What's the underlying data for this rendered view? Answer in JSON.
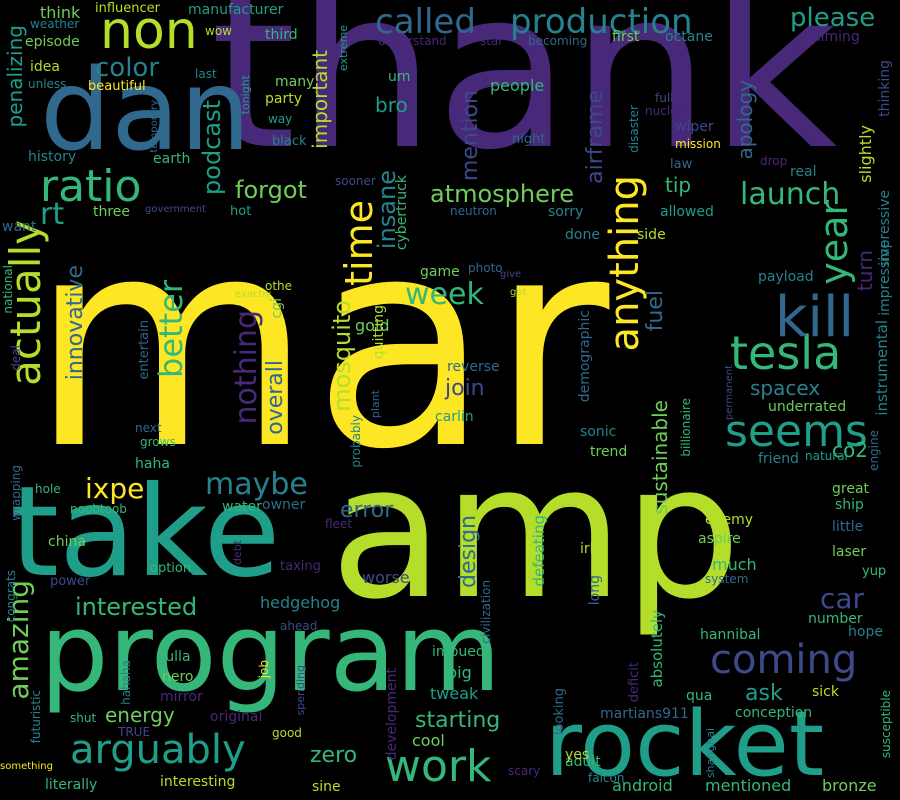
{
  "background": "#000000",
  "palette": [
    "#440154",
    "#482878",
    "#3e4989",
    "#31688e",
    "#26828e",
    "#1f9e89",
    "#35b779",
    "#6ece58",
    "#b5de2b",
    "#fde725"
  ],
  "words": [
    "mar",
    "thank",
    "amp",
    "take",
    "program",
    "rocket",
    "dan",
    "non",
    "called",
    "production",
    "ratio",
    "actually",
    "time",
    "tesla",
    "kill",
    "seems",
    "anything",
    "year",
    "arguably",
    "work",
    "coming",
    "please",
    "color",
    "launch",
    "week",
    "better",
    "amazing",
    "interested",
    "maybe",
    "ixpe",
    "nothing",
    "mosquito",
    "rt",
    "forgot",
    "atmosphere",
    "insane",
    "important",
    "podcast",
    "mention",
    "airframe",
    "apology",
    "innovative",
    "overall",
    "join",
    "spacex",
    "sustainable",
    "car",
    "error",
    "design",
    "energy",
    "starting",
    "zero",
    "ask",
    "fuel",
    "tip",
    "turn",
    "co2",
    "bro",
    "penalizing",
    "history",
    "episode",
    "think",
    "weather",
    "influencer",
    "manufacturer",
    "wow",
    "third",
    "octane",
    "first",
    "aiming",
    "star",
    "becoming",
    "understand",
    "extreme",
    "idea",
    "unless",
    "beautiful",
    "last",
    "many",
    "party",
    "um",
    "people",
    "full",
    "nuclear",
    "wiper",
    "mission",
    "law",
    "drop",
    "real",
    "slightly",
    "thinking",
    "impressive",
    "instrumental",
    "engine",
    "natural",
    "great",
    "ship",
    "little",
    "laser",
    "yup",
    "hope",
    "sick",
    "susceptible",
    "enemy",
    "aspire",
    "much",
    "system",
    "number",
    "hannibal",
    "conception",
    "martians911",
    "qua",
    "adult",
    "android",
    "mentioned",
    "bronze",
    "yes",
    "falcon",
    "shanghai",
    "scary",
    "deficit",
    "looking",
    "development",
    "cool",
    "tweak",
    "big",
    "imbued",
    "absolutely",
    "long",
    "irl",
    "defeating",
    "civilization",
    "sulla",
    "nero",
    "mirror",
    "hahaha",
    "haha",
    "futuristic",
    "shut",
    "original",
    "TRUE",
    "good",
    "something",
    "literally",
    "interesting",
    "sine",
    "job",
    "spending",
    "ahead",
    "hedgehog",
    "taxing",
    "debt",
    "power",
    "option",
    "china",
    "congrats",
    "noobtoob",
    "wrapping",
    "hole",
    "deal",
    "grows",
    "next",
    "entertain",
    "water",
    "owner",
    "fleet",
    "worse",
    "gold",
    "cgi",
    "exactly",
    "othe",
    "plant",
    "probably",
    "quitting",
    "cybertruck",
    "neutron",
    "sorry",
    "done",
    "side",
    "allowed",
    "photo",
    "give",
    "got",
    "game",
    "reverse",
    "carlin",
    "sonic",
    "demographic",
    "trend",
    "friend",
    "underrated",
    "payload",
    "billionaire",
    "permanent",
    "temporary",
    "earth",
    "disaster",
    "night",
    "black",
    "way",
    "tonight",
    "hot",
    "government",
    "three",
    "sooner",
    "want",
    "national",
    "impressive"
  ]
}
